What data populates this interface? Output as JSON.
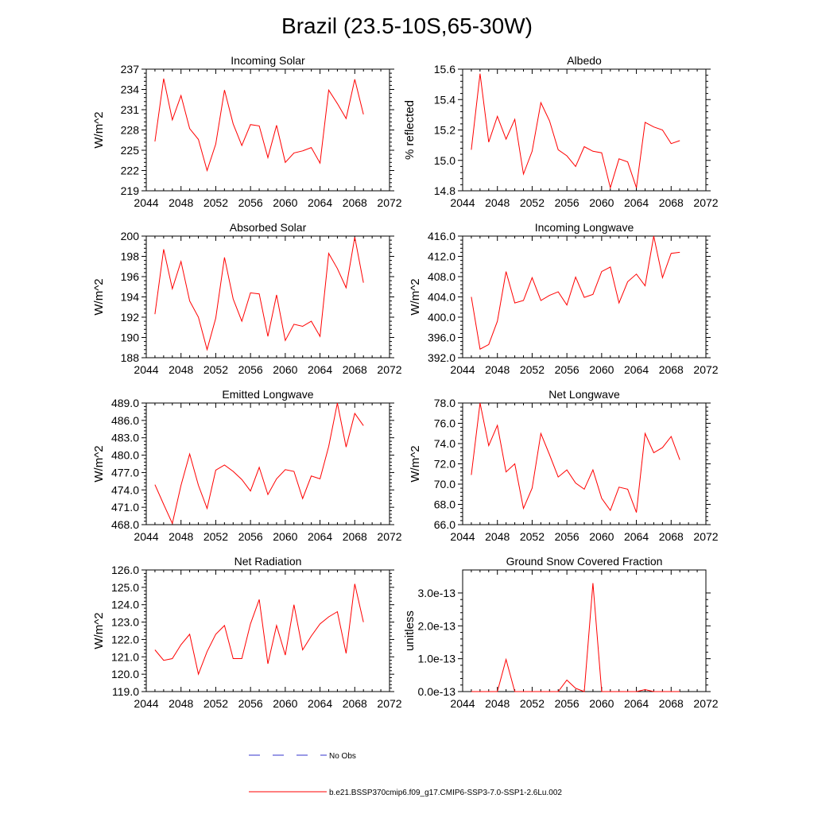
{
  "figure": {
    "title": "Brazil (23.5-10S,65-30W)"
  },
  "legend": {
    "items": [
      {
        "label": "No Obs",
        "color": "#3333cc",
        "dash": true
      },
      {
        "label": "b.e21.BSSP370cmip6.f09_g17.CMIP6-SSP3-7.0-SSP1-2.6Lu.002",
        "color": "#ff0000",
        "dash": false
      }
    ]
  },
  "colors": {
    "series": "#ff0000",
    "axis": "#000000"
  },
  "chart_data": [
    {
      "type": "line",
      "title": "Incoming Solar",
      "xlabel": "",
      "ylabel": "W/m^2",
      "xlim": [
        2044,
        2072
      ],
      "ylim": [
        219,
        237
      ],
      "x_ticks": [
        2044,
        2048,
        2052,
        2056,
        2060,
        2064,
        2068,
        2072
      ],
      "y_ticks": [
        "219",
        "222",
        "225",
        "228",
        "231",
        "234",
        "237"
      ],
      "x": [
        2045,
        2046,
        2047,
        2048,
        2049,
        2050,
        2051,
        2052,
        2053,
        2054,
        2055,
        2056,
        2057,
        2058,
        2059,
        2060,
        2061,
        2062,
        2063,
        2064,
        2065,
        2066,
        2067,
        2068,
        2069
      ],
      "values": [
        226.3,
        235.6,
        229.5,
        233.1,
        228.2,
        226.6,
        222.0,
        225.9,
        233.9,
        228.9,
        225.7,
        228.8,
        228.6,
        223.9,
        228.7,
        223.2,
        224.6,
        224.9,
        225.4,
        223.1,
        233.9,
        231.9,
        229.7,
        235.5,
        230.3
      ]
    },
    {
      "type": "line",
      "title": "Albedo",
      "xlabel": "",
      "ylabel": "% reflected",
      "xlim": [
        2044,
        2072
      ],
      "ylim": [
        14.8,
        15.6
      ],
      "x_ticks": [
        2044,
        2048,
        2052,
        2056,
        2060,
        2064,
        2068,
        2072
      ],
      "y_ticks": [
        "14.8",
        "15.0",
        "15.2",
        "15.4",
        "15.6"
      ],
      "x": [
        2045,
        2046,
        2047,
        2048,
        2049,
        2050,
        2051,
        2052,
        2053,
        2054,
        2055,
        2056,
        2057,
        2058,
        2059,
        2060,
        2061,
        2062,
        2063,
        2064,
        2065,
        2066,
        2067,
        2068,
        2069
      ],
      "values": [
        15.07,
        15.57,
        15.12,
        15.29,
        15.14,
        15.27,
        14.91,
        15.06,
        15.38,
        15.26,
        15.07,
        15.03,
        14.96,
        15.09,
        15.06,
        15.05,
        14.82,
        15.01,
        14.99,
        14.82,
        15.25,
        15.22,
        15.2,
        15.11,
        15.13
      ]
    },
    {
      "type": "line",
      "title": "Absorbed Solar",
      "xlabel": "",
      "ylabel": "W/m^2",
      "xlim": [
        2044,
        2072
      ],
      "ylim": [
        188,
        200
      ],
      "x_ticks": [
        2044,
        2048,
        2052,
        2056,
        2060,
        2064,
        2068,
        2072
      ],
      "y_ticks": [
        "188",
        "190",
        "192",
        "194",
        "196",
        "198",
        "200"
      ],
      "x": [
        2045,
        2046,
        2047,
        2048,
        2049,
        2050,
        2051,
        2052,
        2053,
        2054,
        2055,
        2056,
        2057,
        2058,
        2059,
        2060,
        2061,
        2062,
        2063,
        2064,
        2065,
        2066,
        2067,
        2068,
        2069
      ],
      "values": [
        192.3,
        198.7,
        194.8,
        197.5,
        193.6,
        192.0,
        188.8,
        191.9,
        197.9,
        193.8,
        191.6,
        194.4,
        194.3,
        190.1,
        194.2,
        189.7,
        191.3,
        191.1,
        191.6,
        190.1,
        198.3,
        196.8,
        194.9,
        199.9,
        195.4
      ]
    },
    {
      "type": "line",
      "title": "Incoming Longwave",
      "xlabel": "",
      "ylabel": "W/m^2",
      "xlim": [
        2044,
        2072
      ],
      "ylim": [
        392,
        416
      ],
      "x_ticks": [
        2044,
        2048,
        2052,
        2056,
        2060,
        2064,
        2068,
        2072
      ],
      "y_ticks": [
        "392.0",
        "396.0",
        "400.0",
        "404.0",
        "408.0",
        "412.0",
        "416.0"
      ],
      "x": [
        2045,
        2046,
        2047,
        2048,
        2049,
        2050,
        2051,
        2052,
        2053,
        2054,
        2055,
        2056,
        2057,
        2058,
        2059,
        2060,
        2061,
        2062,
        2063,
        2064,
        2065,
        2066,
        2067,
        2068,
        2069
      ],
      "values": [
        404.0,
        393.7,
        394.6,
        399.2,
        409.0,
        402.8,
        403.3,
        407.8,
        403.3,
        404.3,
        405.0,
        402.4,
        407.9,
        403.9,
        404.5,
        409.0,
        409.9,
        402.8,
        407.0,
        408.5,
        406.2,
        416.0,
        407.8,
        412.6,
        412.8
      ]
    },
    {
      "type": "line",
      "title": "Emitted Longwave",
      "xlabel": "",
      "ylabel": "W/m^2",
      "xlim": [
        2044,
        2072
      ],
      "ylim": [
        468,
        489
      ],
      "x_ticks": [
        2044,
        2048,
        2052,
        2056,
        2060,
        2064,
        2068,
        2072
      ],
      "y_ticks": [
        "468.0",
        "471.0",
        "474.0",
        "477.0",
        "480.0",
        "483.0",
        "486.0",
        "489.0"
      ],
      "x": [
        2045,
        2046,
        2047,
        2048,
        2049,
        2050,
        2051,
        2052,
        2053,
        2054,
        2055,
        2056,
        2057,
        2058,
        2059,
        2060,
        2061,
        2062,
        2063,
        2064,
        2065,
        2066,
        2067,
        2068,
        2069
      ],
      "values": [
        474.9,
        471.5,
        468.2,
        474.8,
        480.2,
        474.8,
        470.8,
        477.4,
        478.3,
        477.2,
        475.8,
        473.8,
        477.9,
        473.2,
        475.9,
        477.5,
        477.2,
        472.5,
        476.4,
        475.9,
        481.5,
        489.0,
        481.4,
        487.2,
        485.1
      ]
    },
    {
      "type": "line",
      "title": "Net Longwave",
      "xlabel": "",
      "ylabel": "W/m^2",
      "xlim": [
        2044,
        2072
      ],
      "ylim": [
        66,
        78
      ],
      "x_ticks": [
        2044,
        2048,
        2052,
        2056,
        2060,
        2064,
        2068,
        2072
      ],
      "y_ticks": [
        "66.0",
        "68.0",
        "70.0",
        "72.0",
        "74.0",
        "76.0",
        "78.0"
      ],
      "x": [
        2045,
        2046,
        2047,
        2048,
        2049,
        2050,
        2051,
        2052,
        2053,
        2054,
        2055,
        2056,
        2057,
        2058,
        2059,
        2060,
        2061,
        2062,
        2063,
        2064,
        2065,
        2066,
        2067,
        2068,
        2069
      ],
      "values": [
        70.9,
        78.0,
        73.8,
        75.8,
        71.2,
        72.0,
        67.6,
        69.6,
        75.0,
        72.9,
        70.7,
        71.4,
        70.1,
        69.5,
        71.4,
        68.6,
        67.4,
        69.7,
        69.5,
        67.2,
        75.0,
        73.1,
        73.6,
        74.7,
        72.4
      ]
    },
    {
      "type": "line",
      "title": "Net Radiation",
      "xlabel": "",
      "ylabel": "W/m^2",
      "xlim": [
        2044,
        2072
      ],
      "ylim": [
        119,
        126
      ],
      "x_ticks": [
        2044,
        2048,
        2052,
        2056,
        2060,
        2064,
        2068,
        2072
      ],
      "y_ticks": [
        "119.0",
        "120.0",
        "121.0",
        "122.0",
        "123.0",
        "124.0",
        "125.0",
        "126.0"
      ],
      "x": [
        2045,
        2046,
        2047,
        2048,
        2049,
        2050,
        2051,
        2052,
        2053,
        2054,
        2055,
        2056,
        2057,
        2058,
        2059,
        2060,
        2061,
        2062,
        2063,
        2064,
        2065,
        2066,
        2067,
        2068,
        2069
      ],
      "values": [
        121.4,
        120.8,
        120.9,
        121.7,
        122.3,
        120.0,
        121.3,
        122.3,
        122.8,
        120.9,
        120.9,
        122.9,
        124.3,
        120.6,
        122.8,
        121.1,
        124.0,
        121.4,
        122.2,
        122.9,
        123.3,
        123.6,
        121.2,
        125.2,
        123.0
      ]
    },
    {
      "type": "line",
      "title": "Ground Snow Covered Fraction",
      "xlabel": "",
      "ylabel": "unitless",
      "xlim": [
        2044,
        2072
      ],
      "ylim": [
        0,
        3.7e-13
      ],
      "x_ticks": [
        2044,
        2048,
        2052,
        2056,
        2060,
        2064,
        2068,
        2072
      ],
      "y_ticks": [
        "0.0e-13",
        "1.0e-13",
        "2.0e-13",
        "3.0e-13"
      ],
      "y_tick_values": [
        0,
        1e-13,
        2e-13,
        3e-13
      ],
      "x": [
        2045,
        2046,
        2047,
        2048,
        2049,
        2050,
        2051,
        2052,
        2053,
        2054,
        2055,
        2056,
        2057,
        2058,
        2059,
        2060,
        2061,
        2062,
        2063,
        2064,
        2065,
        2066,
        2067,
        2068,
        2069
      ],
      "values": [
        0,
        0,
        0,
        0,
        9.8e-14,
        0,
        0,
        0,
        0,
        0,
        0,
        3.5e-14,
        1e-14,
        0,
        3.3e-13,
        0,
        0,
        0,
        0,
        0,
        6e-15,
        0,
        0,
        0,
        0
      ]
    }
  ]
}
